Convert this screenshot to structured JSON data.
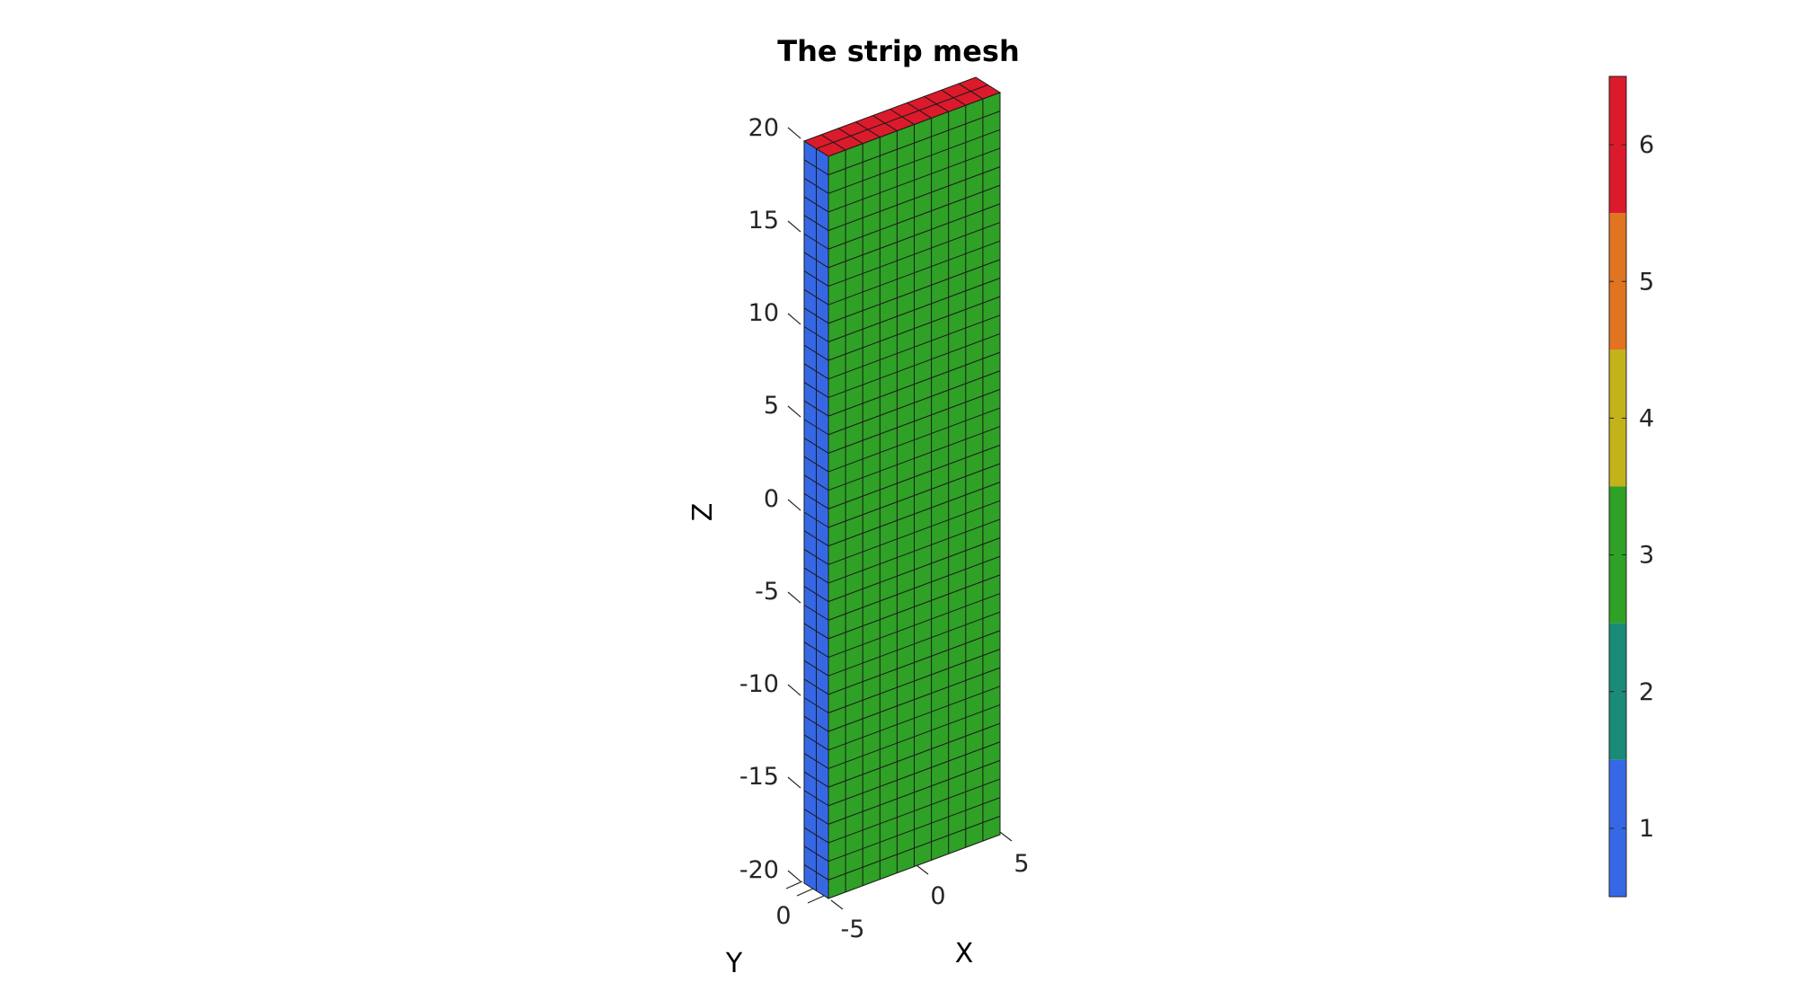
{
  "title": "The strip mesh",
  "axes": {
    "x": {
      "label": "X",
      "ticks": [
        "-5",
        "0",
        "5"
      ]
    },
    "y": {
      "label": "Y",
      "ticks": [
        "0"
      ]
    },
    "z": {
      "label": "Z",
      "ticks": [
        "20",
        "15",
        "10",
        "5",
        "0",
        "-5",
        "-10",
        "-15",
        "-20"
      ]
    }
  },
  "colorbar": {
    "ticks": [
      "1",
      "2",
      "3",
      "4",
      "5",
      "6"
    ],
    "colors": [
      "#3668e6",
      "#1a8a79",
      "#2fa126",
      "#c4b21b",
      "#e07420",
      "#db1a2b"
    ],
    "range": [
      0.5,
      6.5
    ]
  },
  "mesh": {
    "faces": [
      {
        "name": "left-face",
        "value": 1,
        "color": "#3668e6"
      },
      {
        "name": "front-face",
        "value": 3,
        "color": "#2fa126"
      },
      {
        "name": "top-face",
        "value": 6,
        "color": "#db1a2b"
      }
    ],
    "divisions": {
      "x": 10,
      "y": 2,
      "z": 40
    }
  }
}
